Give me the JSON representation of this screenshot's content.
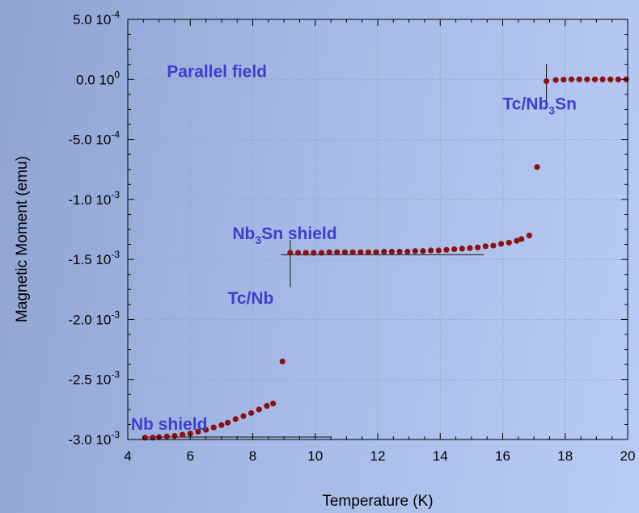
{
  "chart_data": {
    "type": "scatter",
    "xlabel": "Temperature (K)",
    "ylabel": "Magnetic Moment (emu)",
    "xlim": [
      4,
      20
    ],
    "ylim": [
      -0.003,
      0.0005
    ],
    "grid": true,
    "marker_color": "#8b1010",
    "annotation_color": "#3b3fd0",
    "x_ticks": [
      {
        "value": 4,
        "label": "4"
      },
      {
        "value": 6,
        "label": "6"
      },
      {
        "value": 8,
        "label": "8"
      },
      {
        "value": 10,
        "label": "10"
      },
      {
        "value": 12,
        "label": "12"
      },
      {
        "value": 14,
        "label": "14"
      },
      {
        "value": 16,
        "label": "16"
      },
      {
        "value": 18,
        "label": "18"
      },
      {
        "value": 20,
        "label": "20"
      }
    ],
    "y_ticks": [
      {
        "value": 0.0005,
        "mantissa": "5.0 10",
        "exp": "-4"
      },
      {
        "value": 0,
        "mantissa": "0.0 10",
        "exp": "0"
      },
      {
        "value": -0.0005,
        "mantissa": "-5.0 10",
        "exp": "-4"
      },
      {
        "value": -0.001,
        "mantissa": "-1.0 10",
        "exp": "-3"
      },
      {
        "value": -0.0015,
        "mantissa": "-1.5 10",
        "exp": "-3"
      },
      {
        "value": -0.002,
        "mantissa": "-2.0 10",
        "exp": "-3"
      },
      {
        "value": -0.0025,
        "mantissa": "-2.5 10",
        "exp": "-3"
      },
      {
        "value": -0.003,
        "mantissa": "-3.0 10",
        "exp": "-3"
      }
    ],
    "annotations": {
      "parallel_field": "Parallel field",
      "tc_nb3sn": {
        "a": "Tc/Nb",
        "sub": "3",
        "b": "Sn"
      },
      "nb3sn_shield": {
        "a": "Nb",
        "sub": "3",
        "b": "Sn shield"
      },
      "tc_nb": "Tc/Nb",
      "nb_shield": "Nb shield"
    },
    "reference_lines": [
      {
        "name": "nb3sn-shield-level",
        "orientation": "horizontal",
        "y": -0.00146,
        "x_from": 8.9,
        "x_to": 15.4
      },
      {
        "name": "tc-nb-marker",
        "orientation": "vertical",
        "x": 9.2,
        "y_from": -0.00134,
        "y_to": -0.00173
      },
      {
        "name": "nb-shield-level",
        "orientation": "horizontal",
        "y": -0.00298,
        "x_from": 4.6,
        "x_to": 10.5
      },
      {
        "name": "tc-nb3sn-marker",
        "orientation": "vertical",
        "x": 17.4,
        "y_from": 0.00013,
        "y_to": -0.00022
      }
    ],
    "series": [
      {
        "points": [
          [
            4.55,
            -0.002985
          ],
          [
            4.8,
            -0.002985
          ],
          [
            5.0,
            -0.00298
          ],
          [
            5.25,
            -0.002975
          ],
          [
            5.5,
            -0.00297
          ],
          [
            5.75,
            -0.00296
          ],
          [
            6.0,
            -0.00295
          ],
          [
            6.25,
            -0.002935
          ],
          [
            6.5,
            -0.00292
          ],
          [
            6.75,
            -0.0029
          ],
          [
            7.0,
            -0.00288
          ],
          [
            7.2,
            -0.00286
          ],
          [
            7.45,
            -0.00283
          ],
          [
            7.7,
            -0.002805
          ],
          [
            7.95,
            -0.00278
          ],
          [
            8.2,
            -0.00275
          ],
          [
            8.45,
            -0.00272
          ],
          [
            8.65,
            -0.0027
          ],
          [
            8.95,
            -0.00235
          ],
          [
            9.2,
            -0.001445
          ],
          [
            9.45,
            -0.001445
          ],
          [
            9.7,
            -0.001445
          ],
          [
            9.95,
            -0.001445
          ],
          [
            10.2,
            -0.001445
          ],
          [
            10.45,
            -0.00144
          ],
          [
            10.7,
            -0.00144
          ],
          [
            10.95,
            -0.00144
          ],
          [
            11.2,
            -0.00144
          ],
          [
            11.45,
            -0.00144
          ],
          [
            11.7,
            -0.00144
          ],
          [
            11.95,
            -0.00144
          ],
          [
            12.2,
            -0.001435
          ],
          [
            12.45,
            -0.001435
          ],
          [
            12.7,
            -0.001435
          ],
          [
            12.95,
            -0.001435
          ],
          [
            13.2,
            -0.00143
          ],
          [
            13.45,
            -0.00143
          ],
          [
            13.7,
            -0.001425
          ],
          [
            13.95,
            -0.001425
          ],
          [
            14.2,
            -0.00142
          ],
          [
            14.45,
            -0.001415
          ],
          [
            14.7,
            -0.00141
          ],
          [
            14.95,
            -0.001405
          ],
          [
            15.2,
            -0.0014
          ],
          [
            15.45,
            -0.00139
          ],
          [
            15.7,
            -0.001385
          ],
          [
            15.95,
            -0.00137
          ],
          [
            16.2,
            -0.00136
          ],
          [
            16.45,
            -0.001345
          ],
          [
            16.6,
            -0.00133
          ],
          [
            16.85,
            -0.0013
          ],
          [
            17.1,
            -0.00073
          ],
          [
            17.4,
            -1.5e-05
          ],
          [
            17.7,
            -5e-06
          ],
          [
            17.95,
            -2e-06
          ],
          [
            18.2,
            0.0
          ],
          [
            18.45,
            0.0
          ],
          [
            18.7,
            0.0
          ],
          [
            18.95,
            0.0
          ],
          [
            19.2,
            0.0
          ],
          [
            19.45,
            0.0
          ],
          [
            19.7,
            0.0
          ],
          [
            19.95,
            0.0
          ]
        ]
      }
    ]
  }
}
